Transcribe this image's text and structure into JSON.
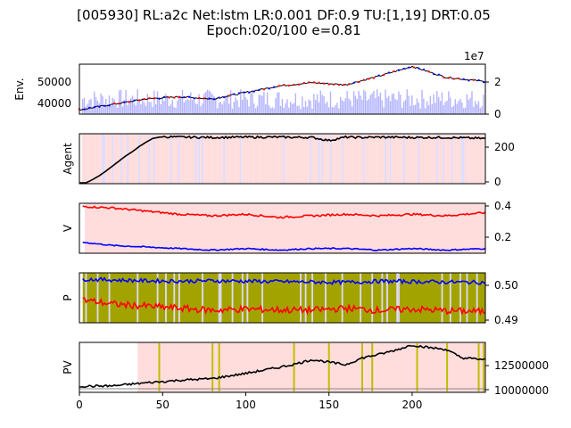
{
  "title_line1": "[005930] RL:a2c Net:lstm LR:0.001 DF:0.9 TU:[1,19] DRT:0.05",
  "title_line2": "Epoch:020/100 e=0.81",
  "chart_data": [
    {
      "panel": "env",
      "type": "line",
      "ylabel": "Env.",
      "xlim": [
        0,
        244
      ],
      "yticks": [
        "50000",
        "40000"
      ],
      "y2ticks": [
        "2",
        "0"
      ],
      "y2_offset": "1e7",
      "price": {
        "x": [
          0,
          20,
          40,
          60,
          80,
          100,
          120,
          140,
          160,
          180,
          200,
          220,
          244
        ],
        "y": [
          36000,
          38500,
          41000,
          42000,
          41000,
          44000,
          47000,
          48500,
          47500,
          51500,
          56000,
          51000,
          49000
        ]
      },
      "volume_unit": "1e7",
      "colors": {
        "price": "#000000",
        "buy": "#ff0000",
        "sell": "#0000ff",
        "volume": "#b3b3ff"
      }
    },
    {
      "panel": "agent",
      "type": "line",
      "ylabel": "Agent",
      "yticks": [
        "200",
        "0"
      ],
      "series": [
        {
          "x": [
            0,
            4,
            8,
            12,
            16,
            20,
            24,
            28,
            32,
            36,
            40,
            44,
            48,
            52,
            60,
            80,
            100,
            120,
            140,
            150,
            160,
            170,
            180,
            200,
            220,
            244
          ],
          "y": [
            0,
            0,
            20,
            42,
            70,
            100,
            130,
            160,
            185,
            215,
            240,
            262,
            270,
            272,
            270,
            268,
            270,
            270,
            268,
            250,
            270,
            268,
            270,
            268,
            268,
            262
          ]
        }
      ],
      "colors": {
        "line": "#000000",
        "hold_bg": "#ffdddd",
        "sell_bg": "#ddddff"
      }
    },
    {
      "panel": "v",
      "type": "line",
      "ylabel": "V",
      "yticks": [
        "0.4",
        "0.2"
      ],
      "series": [
        {
          "x": [
            2,
            20,
            40,
            60,
            80,
            100,
            120,
            140,
            160,
            180,
            200,
            220,
            244
          ],
          "y": [
            0.4,
            0.39,
            0.37,
            0.35,
            0.34,
            0.35,
            0.33,
            0.34,
            0.35,
            0.34,
            0.35,
            0.34,
            0.36
          ]
        },
        {
          "x": [
            2,
            20,
            40,
            60,
            80,
            100,
            120,
            140,
            160,
            180,
            200,
            220,
            244
          ],
          "y": [
            0.17,
            0.15,
            0.14,
            0.13,
            0.12,
            0.13,
            0.12,
            0.13,
            0.13,
            0.12,
            0.13,
            0.12,
            0.13
          ]
        }
      ],
      "colors": {
        "v1": "#ff0000",
        "v2": "#0000ff",
        "bg": "#ffdddd"
      }
    },
    {
      "panel": "p",
      "type": "line",
      "ylabel": "P",
      "yticks": [
        "0.50",
        "0.49"
      ],
      "series": [
        {
          "x": [
            2,
            20,
            40,
            60,
            80,
            100,
            120,
            140,
            160,
            180,
            200,
            220,
            244
          ],
          "y": [
            0.501,
            0.5008,
            0.5006,
            0.5005,
            0.5006,
            0.5005,
            0.5004,
            0.5003,
            0.5002,
            0.5005,
            0.5004,
            0.5003,
            0.5002
          ]
        },
        {
          "x": [
            2,
            20,
            40,
            60,
            80,
            100,
            120,
            140,
            160,
            180,
            200,
            220,
            244
          ],
          "y": [
            0.496,
            0.495,
            0.4945,
            0.494,
            0.4935,
            0.4938,
            0.4936,
            0.4935,
            0.494,
            0.4935,
            0.4938,
            0.4934,
            0.4932
          ]
        }
      ],
      "colors": {
        "p1": "#0000ff",
        "p2": "#ff0000",
        "bg": "#a3a300"
      }
    },
    {
      "panel": "pv",
      "type": "line",
      "ylabel": "PV",
      "xticks": [
        "0",
        "50",
        "100",
        "150",
        "200"
      ],
      "yticks": [
        "12500000",
        "10000000"
      ],
      "series": [
        {
          "x": [
            0,
            20,
            40,
            60,
            80,
            100,
            120,
            130,
            140,
            150,
            160,
            170,
            180,
            190,
            200,
            210,
            220,
            230,
            244
          ],
          "y": [
            10000000,
            10050000,
            10400000,
            10700000,
            10900000,
            11500000,
            12200000,
            12600000,
            13100000,
            12800000,
            12500000,
            13300000,
            13700000,
            14200000,
            14800000,
            14500000,
            14300000,
            13300000,
            13100000
          ]
        }
      ],
      "learning_points": [
        48,
        80,
        84,
        129,
        150,
        170,
        176,
        203,
        221,
        240,
        243
      ],
      "colors": {
        "line": "#000000",
        "vline": "#bfbf00",
        "bg": "#ffdddd"
      }
    }
  ]
}
